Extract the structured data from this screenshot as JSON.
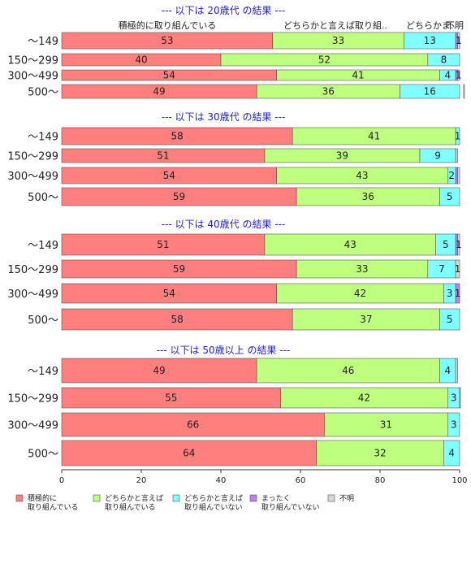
{
  "chart_data": {
    "type": "bar",
    "orientation": "horizontal-stacked",
    "column_headers": [
      "積極的に取り組んでいる",
      "どちらかと言えば取り組..",
      "どちらかま..",
      "不明"
    ],
    "series": [
      {
        "name": "積極的に\n取り組んでいる",
        "color": "#ff7f7f"
      },
      {
        "name": "どちらかと言えば\n取り組んでいる",
        "color": "#bfff7f"
      },
      {
        "name": "どちらかと言えば\n取り組んでいない",
        "color": "#7fffff"
      },
      {
        "name": "まったく\n取り組んでいない",
        "color": "#bf7fff"
      },
      {
        "name": "不明",
        "color": "#d8d8d8"
      }
    ],
    "groups": [
      {
        "title": "--- 以下は 20歳代 の結果 ---",
        "rows": [
          {
            "label": "～149",
            "values": [
              53,
              33,
              13,
              0.5,
              1
            ]
          },
          {
            "label": "150～299",
            "values": [
              40,
              52,
              8,
              0,
              0
            ]
          },
          {
            "label": "300～499",
            "values": [
              54,
              41,
              4,
              0.5,
              1
            ]
          },
          {
            "label": "500～",
            "values": [
              49,
              36,
              16,
              0,
              0.5
            ]
          }
        ]
      },
      {
        "title": "--- 以下は 30歳代 の結果 ---",
        "rows": [
          {
            "label": "～149",
            "values": [
              58,
              41,
              1,
              0,
              0
            ]
          },
          {
            "label": "150～299",
            "values": [
              51,
              39,
              9,
              0,
              0.5
            ]
          },
          {
            "label": "300～499",
            "values": [
              54,
              43,
              2,
              0.5,
              0.5
            ]
          },
          {
            "label": "500～",
            "values": [
              59,
              36,
              5,
              0,
              0
            ]
          }
        ]
      },
      {
        "title": "--- 以下は 40歳代 の結果 ---",
        "rows": [
          {
            "label": "～149",
            "values": [
              51,
              43,
              5,
              0.5,
              1
            ]
          },
          {
            "label": "150～299",
            "values": [
              59,
              33,
              7,
              0,
              1
            ]
          },
          {
            "label": "300～499",
            "values": [
              54,
              42,
              3,
              1,
              0
            ]
          },
          {
            "label": "500～",
            "values": [
              58,
              37,
              5,
              0,
              0
            ]
          }
        ]
      },
      {
        "title": "--- 以下は 50歳以上 の結果 ---",
        "rows": [
          {
            "label": "～149",
            "values": [
              49,
              46,
              4,
              0,
              0.5
            ]
          },
          {
            "label": "150～299",
            "values": [
              55,
              42,
              3,
              0,
              0.5
            ]
          },
          {
            "label": "300～499",
            "values": [
              66,
              31,
              3,
              0,
              0
            ]
          },
          {
            "label": "500～",
            "values": [
              64,
              32,
              4,
              0,
              0
            ]
          }
        ]
      }
    ],
    "value_labels": {
      "0": [
        [
          "53",
          "33",
          "13",
          "",
          "1"
        ],
        [
          "40",
          "52",
          "8",
          "",
          ""
        ],
        [
          "54",
          "41",
          "4",
          "",
          "1"
        ],
        [
          "49",
          "36",
          "16",
          "",
          ""
        ]
      ],
      "1": [
        [
          "58",
          "41",
          "1",
          "",
          ""
        ],
        [
          "51",
          "39",
          "9",
          "",
          ""
        ],
        [
          "54",
          "43",
          "2",
          "",
          ""
        ],
        [
          "59",
          "36",
          "5",
          "",
          ""
        ]
      ],
      "2": [
        [
          "51",
          "43",
          "5",
          "",
          "1"
        ],
        [
          "59",
          "33",
          "7",
          "",
          "1"
        ],
        [
          "54",
          "42",
          "3",
          "1",
          ""
        ],
        [
          "58",
          "37",
          "5",
          "",
          ""
        ]
      ],
      "3": [
        [
          "49",
          "46",
          "4",
          "",
          ""
        ],
        [
          "55",
          "42",
          "3",
          "",
          ""
        ],
        [
          "66",
          "31",
          "3",
          "",
          ""
        ],
        [
          "64",
          "32",
          "4",
          "",
          ""
        ]
      ]
    },
    "xlim": [
      0,
      100
    ],
    "xticks": [
      0,
      20,
      40,
      60,
      80,
      100
    ],
    "legend_position": "bottom"
  }
}
